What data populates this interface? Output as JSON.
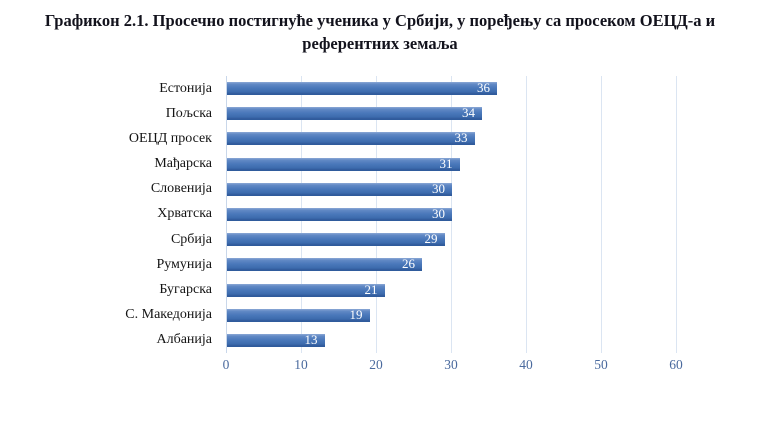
{
  "title": {
    "line1": "Графикон 2.1. Просечно постигнуће ученика у Србији, у поређењу са просеком ОЕЦД-а и",
    "line2": "референтних земаља"
  },
  "chart_data": {
    "type": "bar",
    "orientation": "horizontal",
    "title": "Графикон 2.1. Просечно постигнуће ученика у Србији, у поређењу са просеком ОЕЦД-а и референтних земаља",
    "categories": [
      "Естонија",
      "Пољска",
      "ОЕЦД просек",
      "Мађарска",
      "Словенија",
      "Хрватска",
      "Србија",
      "Румунија",
      "Бугарска",
      "С. Македонија",
      "Албанија"
    ],
    "values": [
      36,
      34,
      33,
      31,
      30,
      30,
      29,
      26,
      21,
      19,
      13
    ],
    "value_labels_position": "inside-end",
    "xlabel": "",
    "ylabel": "",
    "xlim": [
      0,
      60
    ],
    "xticks": [
      0,
      10,
      20,
      30,
      40,
      50,
      60
    ],
    "grid": "vertical-on",
    "legend": "none",
    "colors": {
      "bar_fill": "#4a78ba",
      "bar_gradient_top": "#8ba8d5",
      "bar_gradient_bottom": "#30599a",
      "value_label": "#ffffff",
      "category_label": "#141414",
      "tick_label": "#4a6a9e",
      "gridline": "#dbe5f2",
      "title": "#12121c",
      "background": "#ffffff"
    }
  }
}
